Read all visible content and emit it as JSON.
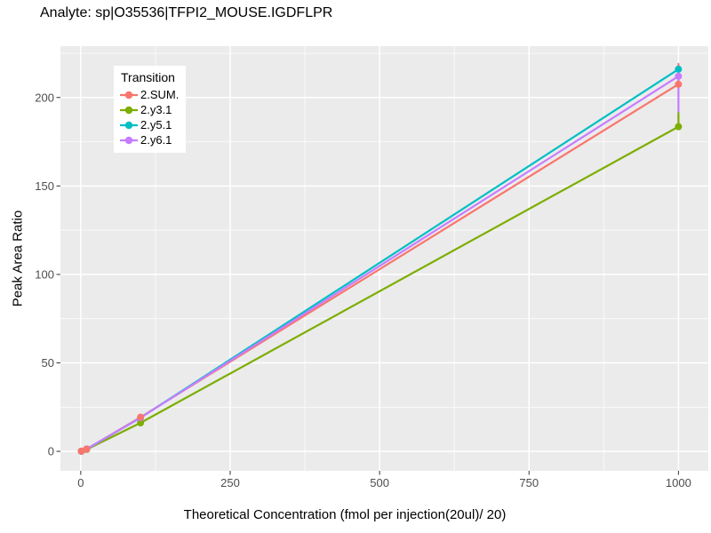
{
  "chart_data": {
    "type": "line",
    "title": "Analyte: sp|O35536|TFPI2_MOUSE.IGDFLPR",
    "xlabel": "Theoretical Concentration (fmol per injection(20ul)/ 20)",
    "ylabel": "Peak Area Ratio",
    "legend_title": "Transition",
    "legend_position": "top-left-inside",
    "grid": true,
    "panel_bg": "#EBEBEB",
    "grid_color": "#FFFFFF",
    "tick_mark_color": "#333333",
    "tick_label_color": "#4D4D4D",
    "xlim": [
      -34,
      1050
    ],
    "ylim": [
      -11,
      229
    ],
    "x_ticks": [
      0,
      250,
      500,
      750,
      1000
    ],
    "x_minor_ticks": [
      125,
      375,
      625,
      875
    ],
    "y_ticks": [
      0,
      50,
      100,
      150,
      200
    ],
    "y_minor_ticks": [
      25,
      75,
      125,
      175,
      225
    ],
    "series": [
      {
        "name": "2.SUM.",
        "color": "#F8766D",
        "line": [
          [
            1,
            0.1
          ],
          [
            10,
            1.3
          ],
          [
            100,
            19.3
          ],
          [
            1000,
            207.5
          ],
          [
            1000,
            219
          ]
        ],
        "points": [
          [
            1,
            0.1
          ],
          [
            10,
            1.3
          ],
          [
            100,
            19.3
          ],
          [
            1000,
            207.5
          ]
        ]
      },
      {
        "name": "2.y3.1",
        "color": "#7CAE00",
        "line": [
          [
            1,
            0.1
          ],
          [
            10,
            1.1
          ],
          [
            100,
            16.1
          ],
          [
            1000,
            183.5
          ],
          [
            1000,
            192
          ]
        ],
        "points": [
          [
            1,
            0.1
          ],
          [
            10,
            1.1
          ],
          [
            100,
            16.1
          ],
          [
            1000,
            183.5
          ]
        ]
      },
      {
        "name": "2.y5.1",
        "color": "#00BFC4",
        "line": [
          [
            1,
            0.1
          ],
          [
            10,
            1.3
          ],
          [
            100,
            19.0
          ],
          [
            1000,
            216
          ]
        ],
        "points": [
          [
            1,
            0.1
          ],
          [
            10,
            1.3
          ],
          [
            100,
            19.0
          ],
          [
            1000,
            216
          ]
        ]
      },
      {
        "name": "2.y6.1",
        "color": "#C77CFF",
        "line": [
          [
            1,
            0.1
          ],
          [
            10,
            1.3
          ],
          [
            100,
            19.0
          ],
          [
            1000,
            212
          ],
          [
            1000,
            192
          ]
        ],
        "points": [
          [
            1,
            0.1
          ],
          [
            10,
            1.3
          ],
          [
            100,
            19.0
          ],
          [
            1000,
            212
          ]
        ]
      }
    ],
    "line_draw_order": [
      0,
      1,
      2,
      3
    ],
    "point_draw_order": [
      1,
      2,
      3,
      0
    ]
  }
}
